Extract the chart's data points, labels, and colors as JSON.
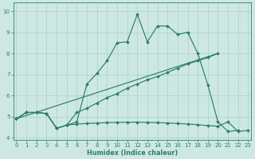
{
  "xlabel": "Humidex (Indice chaleur)",
  "line_color": "#2d7d6e",
  "bg_color": "#cde8e2",
  "grid_color": "#aacfc8",
  "ylim": [
    3.9,
    10.4
  ],
  "xlim": [
    -0.3,
    23.3
  ],
  "yticks": [
    4,
    5,
    6,
    7,
    8,
    9,
    10
  ],
  "xticks": [
    0,
    1,
    2,
    3,
    4,
    5,
    6,
    7,
    8,
    9,
    10,
    11,
    12,
    13,
    14,
    15,
    16,
    17,
    18,
    19,
    20,
    21,
    22,
    23
  ],
  "line1_x": [
    0,
    1,
    2,
    3,
    4,
    5,
    6,
    7,
    8,
    9,
    10,
    11,
    12,
    13,
    14,
    15,
    16,
    17,
    18,
    19,
    20,
    21,
    22,
    23
  ],
  "line1_y": [
    4.9,
    5.2,
    5.2,
    5.15,
    4.45,
    4.6,
    4.75,
    6.55,
    7.05,
    7.65,
    8.5,
    8.55,
    9.85,
    8.55,
    9.3,
    9.3,
    8.9,
    9.0,
    8.0,
    6.5,
    4.75,
    4.3,
    4.35,
    null
  ],
  "line2_x": [
    0,
    20
  ],
  "line2_y": [
    4.9,
    8.0
  ],
  "line3_x": [
    0,
    1,
    2,
    3,
    4,
    5,
    6,
    7,
    8,
    9,
    10,
    11,
    12,
    13,
    14,
    15,
    16,
    17,
    18,
    19,
    20,
    21,
    22,
    23
  ],
  "line3_y": [
    4.9,
    5.2,
    5.2,
    5.15,
    4.45,
    4.6,
    5.2,
    5.4,
    5.65,
    5.9,
    6.1,
    6.35,
    6.55,
    6.75,
    6.9,
    7.1,
    7.3,
    7.5,
    7.65,
    7.8,
    8.0,
    null,
    null,
    null
  ],
  "line4_x": [
    0,
    1,
    2,
    3,
    4,
    5,
    6,
    7,
    8,
    9,
    10,
    11,
    12,
    13,
    14,
    15,
    16,
    17,
    18,
    19,
    20,
    21,
    22,
    23
  ],
  "line4_y": [
    4.9,
    5.2,
    5.2,
    5.15,
    4.45,
    4.6,
    4.65,
    4.68,
    4.7,
    4.72,
    4.73,
    4.74,
    4.74,
    4.73,
    4.72,
    4.7,
    4.68,
    4.65,
    4.62,
    4.58,
    4.55,
    4.75,
    4.3,
    4.35
  ]
}
